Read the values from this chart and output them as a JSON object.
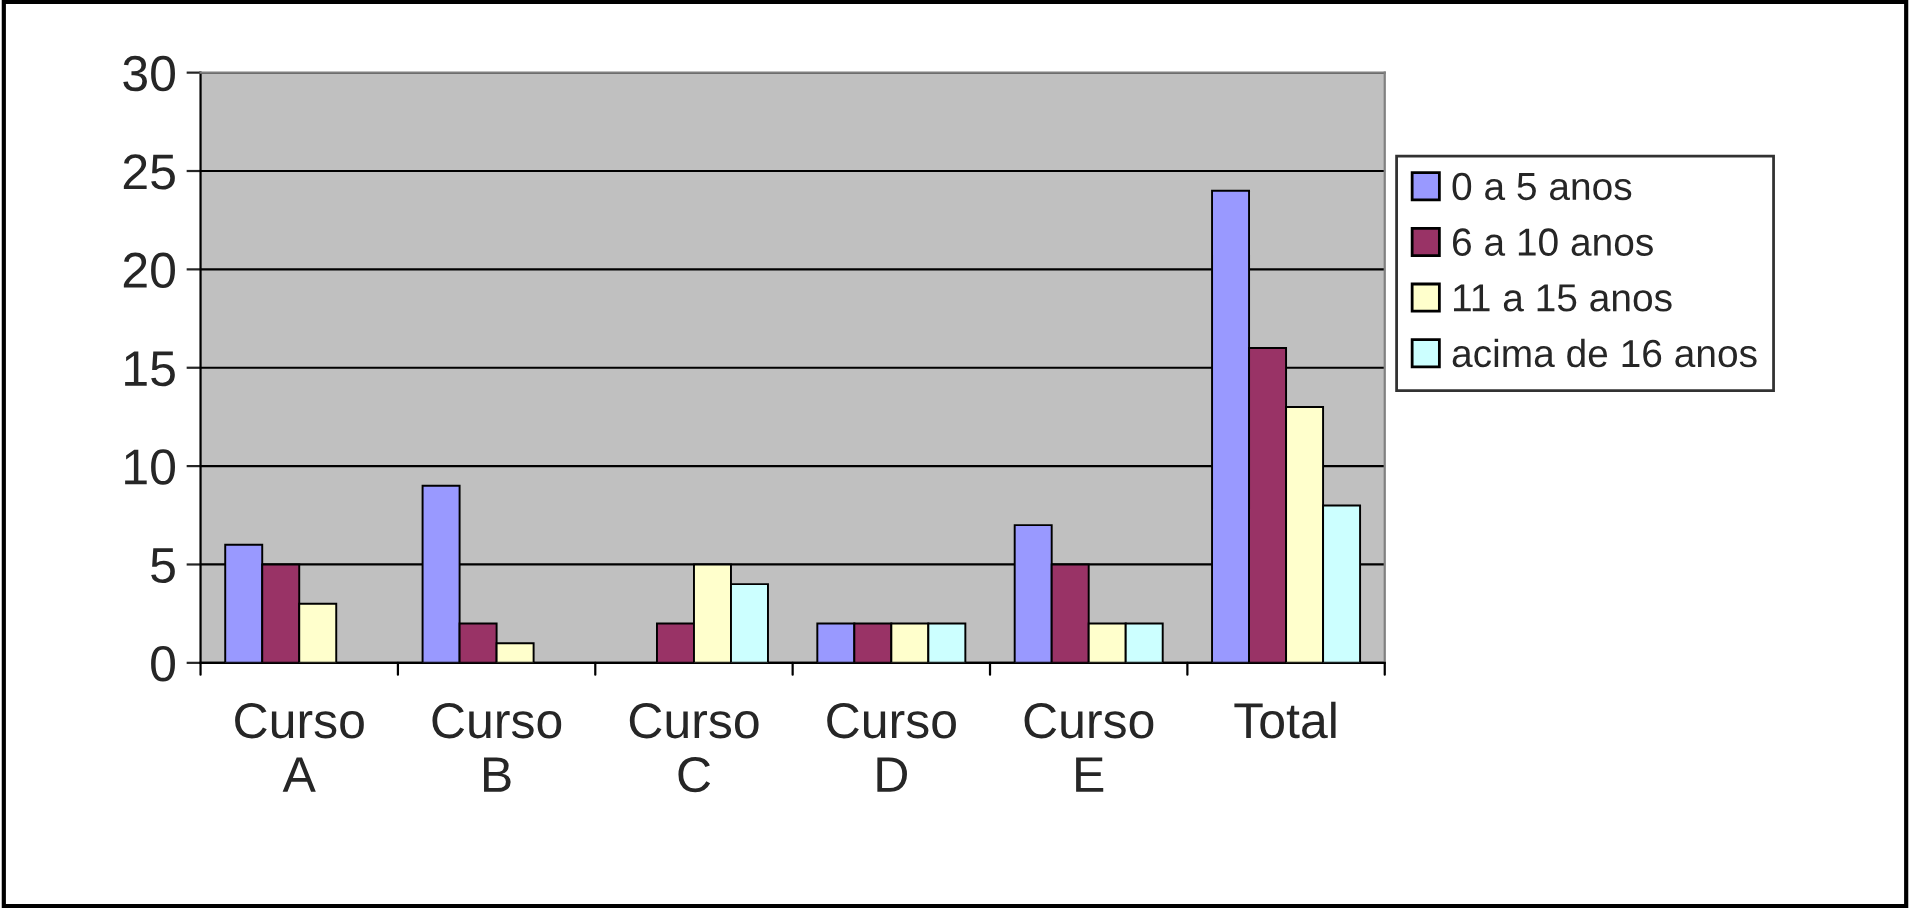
{
  "chart_data": {
    "type": "bar",
    "categories": [
      "Curso A",
      "Curso B",
      "Curso C",
      "Curso D",
      "Curso E",
      "Total"
    ],
    "series": [
      {
        "name": "0 a 5 anos",
        "color": "#9999ff",
        "values": [
          6,
          9,
          0,
          2,
          7,
          24
        ]
      },
      {
        "name": "6 a 10 anos",
        "color": "#993366",
        "values": [
          5,
          2,
          2,
          2,
          5,
          16
        ]
      },
      {
        "name": "11 a 15 anos",
        "color": "#ffffcc",
        "values": [
          3,
          1,
          5,
          2,
          2,
          13
        ]
      },
      {
        "name": "acima de 16 anos",
        "color": "#ccffff",
        "values": [
          0,
          0,
          4,
          2,
          2,
          8
        ]
      }
    ],
    "ylim": [
      0,
      30
    ],
    "yticks": [
      0,
      5,
      10,
      15,
      20,
      25,
      30
    ],
    "grid": "y",
    "legend": "right"
  }
}
